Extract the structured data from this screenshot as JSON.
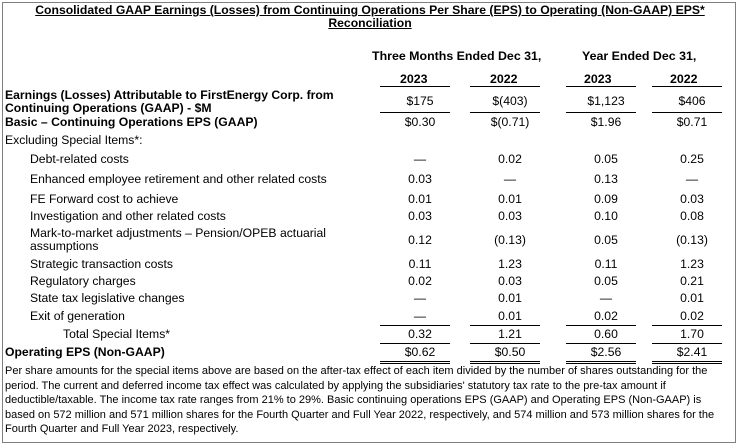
{
  "title_line1": "Consolidated GAAP Earnings (Losses) from Continuing Operations Per Share (EPS) to Operating (Non-GAAP) EPS*",
  "title_line2": "Reconciliation",
  "headers": {
    "three_months": "Three Months Ended Dec 31,",
    "year_ended": "Year Ended Dec 31,",
    "years": [
      "2023",
      "2022",
      "2023",
      "2022"
    ]
  },
  "rows": [
    {
      "label": "Earnings (Losses) Attributable to FirstEnergy Corp. from",
      "label2": "Continuing Operations (GAAP) - $M",
      "values": [
        "$175",
        "$(403)",
        "$1,123",
        "$406"
      ],
      "style": "bold"
    },
    {
      "label": "Basic – Continuing Operations EPS (GAAP)",
      "values": [
        "$0.30",
        "$(0.71)",
        "$1.96",
        "$0.71"
      ],
      "style": "bold"
    },
    {
      "label": "Excluding Special Items*:",
      "values": [
        "",
        "",
        "",
        ""
      ],
      "style": "plain"
    },
    {
      "label": "Debt-related costs",
      "values": [
        "—",
        "0.02",
        "0.05",
        "0.25"
      ],
      "style": "indent"
    },
    {
      "label": "Enhanced employee retirement and other related costs",
      "values": [
        "0.03",
        "—",
        "0.13",
        "—"
      ],
      "style": "indent"
    },
    {
      "label": "FE Forward cost to achieve",
      "values": [
        "0.01",
        "0.01",
        "0.09",
        "0.03"
      ],
      "style": "indent"
    },
    {
      "label": "Investigation and other related costs",
      "values": [
        "0.03",
        "0.03",
        "0.10",
        "0.08"
      ],
      "style": "indent"
    },
    {
      "label": "Mark-to-market adjustments – Pension/OPEB actuarial",
      "label2": "assumptions",
      "values": [
        "0.12",
        "(0.13)",
        "0.05",
        "(0.13)"
      ],
      "style": "indent"
    },
    {
      "label": "Strategic transaction costs",
      "values": [
        "0.11",
        "1.23",
        "0.11",
        "1.23"
      ],
      "style": "indent"
    },
    {
      "label": "Regulatory charges",
      "values": [
        "0.02",
        "0.03",
        "0.05",
        "0.21"
      ],
      "style": "indent"
    },
    {
      "label": "State tax legislative changes",
      "values": [
        "—",
        "0.01",
        "—",
        "0.01"
      ],
      "style": "indent"
    },
    {
      "label": "Exit of generation",
      "values": [
        "—",
        "0.01",
        "0.02",
        "0.02"
      ],
      "style": "indent"
    },
    {
      "label": "Total Special Items*",
      "values": [
        "0.32",
        "1.21",
        "0.60",
        "1.70"
      ],
      "style": "indent2"
    },
    {
      "label": "Operating EPS (Non-GAAP)",
      "values": [
        "$0.62",
        "$0.50",
        "$2.56",
        "$2.41"
      ],
      "style": "bold"
    }
  ],
  "footnote": "Per share amounts for the special items above are based on the after-tax effect of each item divided by the number of shares outstanding for the period. The current and deferred income tax effect was calculated by applying the subsidiaries' statutory tax rate to the pre-tax amount if deductible/taxable. The income tax rate ranges from 21% to 29%. Basic continuing operations EPS (GAAP) and Operating EPS (Non-GAAP) is based on 572 million and 571 million shares for the Fourth Quarter and Full Year 2022, respectively, and 574 million and 573 million shares for the Fourth Quarter and Full Year 2023, respectively."
}
